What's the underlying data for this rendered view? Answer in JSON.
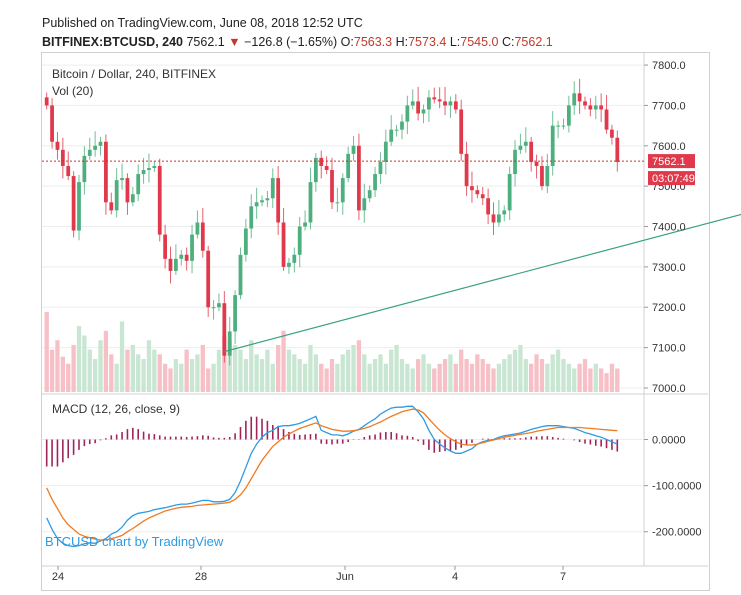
{
  "header": {
    "published": "Published on TradingView.com, June 08, 2018 12:52 UTC",
    "symbol": "BITFINEX:BTCUSD, 240",
    "last": "7562.1",
    "change": "−126.8 (−1.65%)",
    "open_label": "O:",
    "open": "7563.3",
    "high_label": "H:",
    "high": "7573.4",
    "low_label": "L:",
    "low": "7545.0",
    "close_label": "C:",
    "close": "7562.1"
  },
  "main_pane": {
    "title": "Bitcoin / Dollar, 240, BITFINEX",
    "volume_label": "Vol (20)"
  },
  "macd_pane": {
    "title": "MACD (12, 26, close, 9)"
  },
  "price_tag": "7562.1",
  "countdown_tag": "03:07:49",
  "watermark": "BTCUSD chart by TradingView",
  "colors": {
    "up": "#4caf7d",
    "down": "#e0394b",
    "macd": "#2d9be4",
    "signal": "#ef7b22",
    "hist": "#a0245a",
    "trendline": "#3aa37a"
  },
  "chart_data": [
    {
      "type": "candlestick",
      "title": "Bitcoin / Dollar, 240, BITFINEX",
      "x_ticks": [
        "24",
        "28",
        "Jun",
        "4",
        "7"
      ],
      "y_ticks": [
        "7800.0",
        "7700.0",
        "7600.0",
        "7500.0",
        "7400.0",
        "7300.0",
        "7200.0",
        "7100.0",
        "7000.0"
      ],
      "ylim": [
        6990,
        7820
      ],
      "last_price": 7562.1,
      "close_series": [
        7700,
        7610,
        7590,
        7550,
        7525,
        7390,
        7510,
        7575,
        7590,
        7600,
        7610,
        7460,
        7440,
        7515,
        7520,
        7460,
        7480,
        7530,
        7540,
        7545,
        7550,
        7380,
        7320,
        7290,
        7320,
        7330,
        7315,
        7380,
        7410,
        7340,
        7200,
        7200,
        7210,
        7080,
        7140,
        7230,
        7330,
        7395,
        7450,
        7460,
        7465,
        7470,
        7520,
        7410,
        7300,
        7310,
        7330,
        7400,
        7410,
        7510,
        7570,
        7550,
        7540,
        7460,
        7460,
        7520,
        7580,
        7600,
        7440,
        7470,
        7490,
        7530,
        7560,
        7610,
        7640,
        7640,
        7660,
        7700,
        7710,
        7680,
        7690,
        7720,
        7715,
        7710,
        7700,
        7710,
        7690,
        7580,
        7500,
        7490,
        7480,
        7470,
        7430,
        7410,
        7430,
        7440,
        7530,
        7590,
        7600,
        7610,
        7560,
        7550,
        7500,
        7550,
        7650,
        7650,
        7650,
        7700,
        7730,
        7710,
        7700,
        7690,
        7700,
        7690,
        7640,
        7620,
        7560
      ],
      "volume_series": [
        34,
        18,
        22,
        15,
        12,
        20,
        28,
        24,
        18,
        14,
        22,
        26,
        16,
        12,
        30,
        18,
        20,
        16,
        14,
        22,
        18,
        16,
        12,
        10,
        14,
        12,
        18,
        14,
        16,
        20,
        10,
        12,
        18,
        24,
        22,
        20,
        18,
        14,
        22,
        16,
        14,
        18,
        12,
        20,
        26,
        18,
        16,
        14,
        12,
        20,
        16,
        12,
        10,
        14,
        12,
        16,
        18,
        20,
        22,
        16,
        12,
        14,
        16,
        12,
        18,
        20,
        14,
        12,
        10,
        14,
        16,
        12,
        10,
        12,
        14,
        16,
        12,
        18,
        14,
        12,
        16,
        14,
        12,
        10,
        12,
        14,
        16,
        18,
        20,
        14,
        12,
        16,
        14,
        12,
        16,
        18,
        14,
        12,
        10,
        12,
        14,
        10,
        12,
        10,
        8,
        12,
        10
      ],
      "trendline": [
        [
          33,
          7090
        ],
        [
          153,
          7515
        ]
      ]
    },
    {
      "type": "line",
      "title": "MACD (12, 26, close, 9)",
      "y_ticks": [
        "0.0000",
        "-100.0000",
        "-200.0000"
      ],
      "ylim": [
        -270,
        90
      ],
      "series": [
        {
          "name": "MACD",
          "values": [
            -170,
            -195,
            -215,
            -225,
            -230,
            -232,
            -230,
            -226,
            -224,
            -225,
            -220,
            -215,
            -205,
            -200,
            -190,
            -175,
            -165,
            -160,
            -158,
            -156,
            -152,
            -150,
            -148,
            -145,
            -142,
            -140,
            -140,
            -138,
            -135,
            -132,
            -132,
            -135,
            -135,
            -134,
            -130,
            -115,
            -90,
            -60,
            -30,
            -10,
            5,
            15,
            20,
            28,
            30,
            30,
            32,
            35,
            40,
            45,
            50,
            20,
            15,
            10,
            10,
            8,
            12,
            18,
            22,
            30,
            38,
            45,
            55,
            62,
            68,
            70,
            70,
            72,
            72,
            60,
            45,
            20,
            0,
            -10,
            -18,
            -25,
            -30,
            -30,
            -25,
            -20,
            -10,
            -5,
            -2,
            0,
            5,
            8,
            10,
            12,
            14,
            18,
            22,
            25,
            28,
            30,
            30,
            30,
            28,
            26,
            24,
            20,
            15,
            12,
            8,
            5,
            0,
            -5,
            -10
          ]
        },
        {
          "name": "Signal",
          "values": [
            -105,
            -130,
            -150,
            -170,
            -185,
            -195,
            -205,
            -210,
            -213,
            -216,
            -218,
            -218,
            -215,
            -212,
            -208,
            -200,
            -193,
            -185,
            -177,
            -170,
            -165,
            -160,
            -155,
            -152,
            -149,
            -147,
            -146,
            -145,
            -143,
            -142,
            -141,
            -140,
            -139,
            -138,
            -136,
            -130,
            -120,
            -105,
            -85,
            -65,
            -45,
            -30,
            -15,
            -5,
            5,
            12,
            18,
            24,
            28,
            32,
            36,
            30,
            26,
            22,
            20,
            18,
            18,
            19,
            21,
            24,
            28,
            33,
            38,
            44,
            50,
            55,
            60,
            63,
            66,
            64,
            58,
            45,
            32,
            20,
            10,
            2,
            -5,
            -10,
            -12,
            -12,
            -10,
            -7,
            -4,
            -1,
            2,
            5,
            7,
            9,
            11,
            13,
            15,
            18,
            20,
            22,
            24,
            26,
            26,
            26,
            26,
            26,
            25,
            24,
            23,
            22,
            21,
            20,
            19
          ]
        }
      ]
    }
  ]
}
